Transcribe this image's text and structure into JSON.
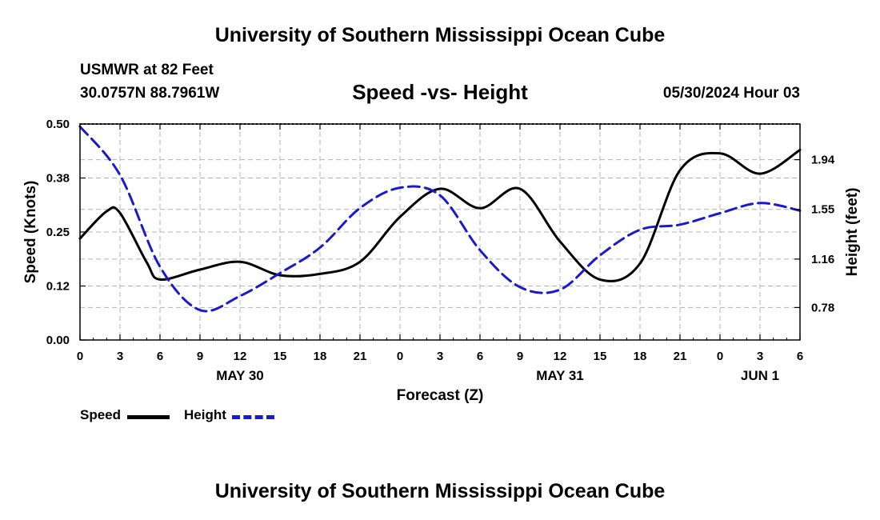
{
  "header": {
    "title": "University of Southern Mississippi Ocean Cube",
    "station": "USMWR at 82 Feet",
    "coordinates": "30.0757N  88.7961W",
    "subtitle": "Speed -vs- Height",
    "datetime": "05/30/2024 Hour 03"
  },
  "footer": {
    "title": "University of Southern Mississippi Ocean Cube"
  },
  "colors": {
    "speed": "#000000",
    "height": "#1a1acd",
    "grid": "#b4b4b4"
  },
  "chart_data": {
    "type": "line",
    "title": "Speed -vs- Height",
    "xlabel": "Forecast (Z)",
    "ylabel": "Speed (Knots)",
    "y2label": "Height (feet)",
    "x_range": [
      0,
      54
    ],
    "x_tick_labels": [
      "0",
      "3",
      "6",
      "9",
      "12",
      "15",
      "18",
      "21",
      "0",
      "3",
      "6",
      "9",
      "12",
      "15",
      "18",
      "21",
      "0",
      "3",
      "6"
    ],
    "date_labels": [
      {
        "label": "MAY 30",
        "x": 12
      },
      {
        "label": "MAY 31",
        "x": 36
      },
      {
        "label": "JUN 1",
        "x": 51
      }
    ],
    "y_left": {
      "range": [
        0,
        0.5
      ],
      "ticks": [
        0.0,
        0.125,
        0.25,
        0.375,
        0.5
      ],
      "tick_labels": [
        "0.00",
        "0.12",
        "0.25",
        "0.38",
        "0.50"
      ]
    },
    "y_right": {
      "range": [
        0.525,
        2.22
      ],
      "ticks": [
        0.78,
        1.16,
        1.55,
        1.94
      ],
      "tick_labels": [
        "0.78",
        "1.16",
        "1.55",
        "1.94"
      ]
    },
    "grid": true,
    "legend": {
      "position": "bottom-left",
      "entries": [
        "Speed",
        "Height"
      ]
    },
    "series": [
      {
        "name": "Speed",
        "axis": "left",
        "style": "solid",
        "x": [
          0,
          2,
          3,
          5,
          6,
          9,
          12,
          15,
          18,
          21,
          24,
          27,
          30,
          33,
          36,
          39,
          42,
          45,
          48,
          51,
          54
        ],
        "y": [
          0.235,
          0.298,
          0.294,
          0.18,
          0.14,
          0.163,
          0.181,
          0.15,
          0.153,
          0.181,
          0.285,
          0.35,
          0.305,
          0.35,
          0.228,
          0.14,
          0.177,
          0.393,
          0.432,
          0.385,
          0.44
        ]
      },
      {
        "name": "Height",
        "axis": "right",
        "style": "dashed",
        "x": [
          0,
          3,
          6,
          9,
          12,
          15,
          18,
          21,
          24,
          27,
          30,
          33,
          36,
          39,
          42,
          45,
          48,
          51,
          54
        ],
        "y": [
          2.2,
          1.82,
          1.1,
          0.76,
          0.87,
          1.05,
          1.25,
          1.56,
          1.72,
          1.66,
          1.23,
          0.94,
          0.92,
          1.19,
          1.39,
          1.43,
          1.52,
          1.6,
          1.54
        ]
      }
    ]
  }
}
